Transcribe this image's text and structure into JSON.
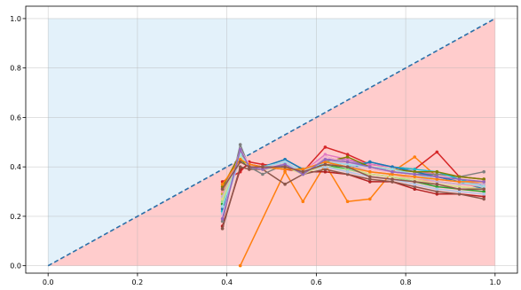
{
  "chart_data": {
    "type": "line",
    "title": "",
    "xlabel": "",
    "ylabel": "",
    "xlim": [
      -0.05,
      1.05
    ],
    "ylim": [
      -0.03,
      1.05
    ],
    "x_ticks": [
      "0.0",
      "0.2",
      "0.4",
      "0.6",
      "0.8",
      "1.0"
    ],
    "y_ticks": [
      "0.0",
      "0.2",
      "0.4",
      "0.6",
      "0.8",
      "1.0"
    ],
    "grid": true,
    "legend": "none",
    "regions": [
      {
        "fill": "#e3f1fa",
        "polygon": [
          [
            0,
            0
          ],
          [
            1,
            1
          ],
          [
            0,
            1
          ]
        ]
      },
      {
        "fill": "#ffcccc",
        "polygon": [
          [
            0,
            0
          ],
          [
            1,
            0
          ],
          [
            1,
            1
          ]
        ]
      }
    ],
    "diagonal": {
      "x": [
        0,
        1
      ],
      "y": [
        0,
        1
      ],
      "color": "#2a6fa8",
      "dashed": true
    },
    "x": [
      0.39,
      0.43,
      0.45,
      0.48,
      0.53,
      0.57,
      0.62,
      0.67,
      0.72,
      0.77,
      0.82,
      0.87,
      0.92,
      0.975
    ],
    "series": [
      {
        "color": "#ff7f0e",
        "values": [
          null,
          0.0,
          null,
          null,
          0.38,
          0.26,
          0.41,
          0.26,
          0.27,
          0.38,
          0.44,
          0.36,
          0.34,
          0.34
        ]
      },
      {
        "color": "#d62728",
        "values": [
          0.34,
          0.38,
          0.42,
          0.41,
          0.4,
          0.38,
          0.48,
          0.45,
          0.41,
          0.4,
          0.39,
          0.46,
          0.36,
          0.35
        ]
      },
      {
        "color": "#b22222",
        "values": [
          0.16,
          0.39,
          0.41,
          0.4,
          0.39,
          0.38,
          0.38,
          0.37,
          0.34,
          0.34,
          0.31,
          0.29,
          0.29,
          0.28
        ]
      },
      {
        "color": "#8c564b",
        "values": [
          0.15,
          0.4,
          0.39,
          0.39,
          0.33,
          0.37,
          0.39,
          0.37,
          0.35,
          0.34,
          0.32,
          0.3,
          0.29,
          0.27
        ]
      },
      {
        "color": "#9467bd",
        "values": [
          0.24,
          0.46,
          0.4,
          0.4,
          0.41,
          0.38,
          0.43,
          0.43,
          0.4,
          0.38,
          0.37,
          0.36,
          0.34,
          0.33
        ]
      },
      {
        "color": "#e377c2",
        "values": [
          0.27,
          0.46,
          0.41,
          0.39,
          0.42,
          0.38,
          0.45,
          0.43,
          0.41,
          0.4,
          0.38,
          0.37,
          0.36,
          0.35
        ]
      },
      {
        "color": "#7f7f7f",
        "values": [
          0.18,
          0.49,
          0.4,
          0.37,
          0.41,
          0.37,
          0.44,
          0.42,
          0.4,
          0.38,
          0.37,
          0.37,
          0.36,
          0.38
        ]
      },
      {
        "color": "#bcbd22",
        "values": [
          0.29,
          0.44,
          0.4,
          0.39,
          0.4,
          0.38,
          0.42,
          0.41,
          0.38,
          0.37,
          0.36,
          0.34,
          0.33,
          0.33
        ]
      },
      {
        "color": "#17becf",
        "values": [
          0.22,
          0.46,
          0.41,
          0.4,
          0.43,
          0.39,
          0.42,
          0.4,
          0.42,
          0.4,
          0.39,
          0.38,
          0.35,
          0.32
        ]
      },
      {
        "color": "#1f77b4",
        "values": [
          0.23,
          0.45,
          0.4,
          0.4,
          0.43,
          0.39,
          0.41,
          0.39,
          0.42,
          0.4,
          0.38,
          0.36,
          0.34,
          0.31
        ]
      },
      {
        "color": "#2ca02c",
        "values": [
          0.25,
          0.43,
          0.4,
          0.4,
          0.41,
          0.38,
          0.41,
          0.39,
          0.37,
          0.36,
          0.34,
          0.32,
          0.31,
          0.3
        ]
      },
      {
        "color": "#98df8a",
        "values": [
          0.26,
          0.44,
          0.4,
          0.4,
          0.4,
          0.38,
          0.4,
          0.39,
          0.37,
          0.36,
          0.34,
          0.33,
          0.32,
          0.31
        ]
      },
      {
        "color": "#ff9896",
        "values": [
          0.3,
          0.45,
          0.41,
          0.4,
          0.4,
          0.39,
          0.43,
          0.41,
          0.38,
          0.37,
          0.35,
          0.34,
          0.33,
          0.32
        ]
      },
      {
        "color": "#c49c94",
        "values": [
          0.31,
          0.46,
          0.41,
          0.4,
          0.41,
          0.38,
          0.44,
          0.42,
          0.39,
          0.38,
          0.37,
          0.35,
          0.34,
          0.33
        ]
      },
      {
        "color": "#808000",
        "values": [
          0.32,
          0.45,
          0.41,
          0.4,
          0.4,
          0.39,
          0.42,
          0.44,
          0.4,
          0.39,
          0.38,
          0.38,
          0.36,
          0.35
        ]
      },
      {
        "color": "#aec7e8",
        "values": [
          0.21,
          0.44,
          0.4,
          0.39,
          0.41,
          0.38,
          0.4,
          0.38,
          0.36,
          0.35,
          0.33,
          0.31,
          0.3,
          0.29
        ]
      },
      {
        "color": "#c5b0d5",
        "values": [
          0.28,
          0.45,
          0.4,
          0.4,
          0.41,
          0.38,
          0.43,
          0.41,
          0.38,
          0.37,
          0.36,
          0.34,
          0.33,
          0.33
        ]
      },
      {
        "color": "#f7b6d2",
        "values": [
          0.2,
          0.47,
          0.41,
          0.39,
          0.42,
          0.38,
          0.44,
          0.42,
          0.39,
          0.38,
          0.37,
          0.35,
          0.34,
          0.34
        ]
      },
      {
        "color": "#dbdb8d",
        "values": [
          0.27,
          0.44,
          0.4,
          0.39,
          0.4,
          0.37,
          0.41,
          0.4,
          0.37,
          0.36,
          0.35,
          0.33,
          0.32,
          0.31
        ]
      },
      {
        "color": "#9edae5",
        "values": [
          0.24,
          0.45,
          0.4,
          0.4,
          0.42,
          0.38,
          0.42,
          0.41,
          0.4,
          0.39,
          0.37,
          0.35,
          0.34,
          0.32
        ]
      },
      {
        "color": "#ff7f0e",
        "values": [
          0.33,
          0.43,
          0.41,
          0.4,
          0.39,
          0.39,
          0.42,
          0.4,
          0.38,
          0.37,
          0.36,
          0.35,
          0.34,
          0.34
        ]
      },
      {
        "color": "#9467bd",
        "values": [
          0.19,
          0.47,
          0.4,
          0.39,
          0.41,
          0.37,
          0.43,
          0.42,
          0.4,
          0.38,
          0.37,
          0.36,
          0.35,
          0.34
        ]
      },
      {
        "color": "#8c564b",
        "values": [
          0.31,
          0.42,
          0.4,
          0.4,
          0.4,
          0.38,
          0.41,
          0.4,
          0.36,
          0.35,
          0.34,
          0.33,
          0.31,
          0.31
        ]
      }
    ]
  }
}
